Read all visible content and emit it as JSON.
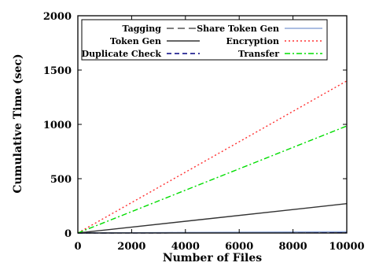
{
  "chart_data": {
    "type": "line",
    "xlabel": "Number of Files",
    "ylabel": "Cumulative Time (sec)",
    "xlim": [
      0,
      10000
    ],
    "ylim": [
      0,
      2000
    ],
    "xticks": [
      "0",
      "2000",
      "4000",
      "6000",
      "8000",
      "10000"
    ],
    "yticks": [
      "0",
      "500",
      "1000",
      "1500",
      "2000"
    ],
    "grid": false,
    "legend_position": "top",
    "x": [
      0,
      10000
    ],
    "series": [
      {
        "name": "Tagging",
        "values": [
          0,
          8
        ],
        "color": "#555555",
        "dash": "long-dash"
      },
      {
        "name": "Token Gen",
        "values": [
          0,
          270
        ],
        "color": "#333333",
        "dash": "solid"
      },
      {
        "name": "Duplicate Check",
        "values": [
          0,
          3
        ],
        "color": "#000080",
        "dash": "dash"
      },
      {
        "name": "Share Token Gen",
        "values": [
          0,
          12
        ],
        "color": "#8fa8d8",
        "dash": "solid"
      },
      {
        "name": "Encryption",
        "values": [
          0,
          1400
        ],
        "color": "#ff3030",
        "dash": "dot"
      },
      {
        "name": "Transfer",
        "values": [
          0,
          985
        ],
        "color": "#00dd00",
        "dash": "dash-dot"
      }
    ]
  }
}
